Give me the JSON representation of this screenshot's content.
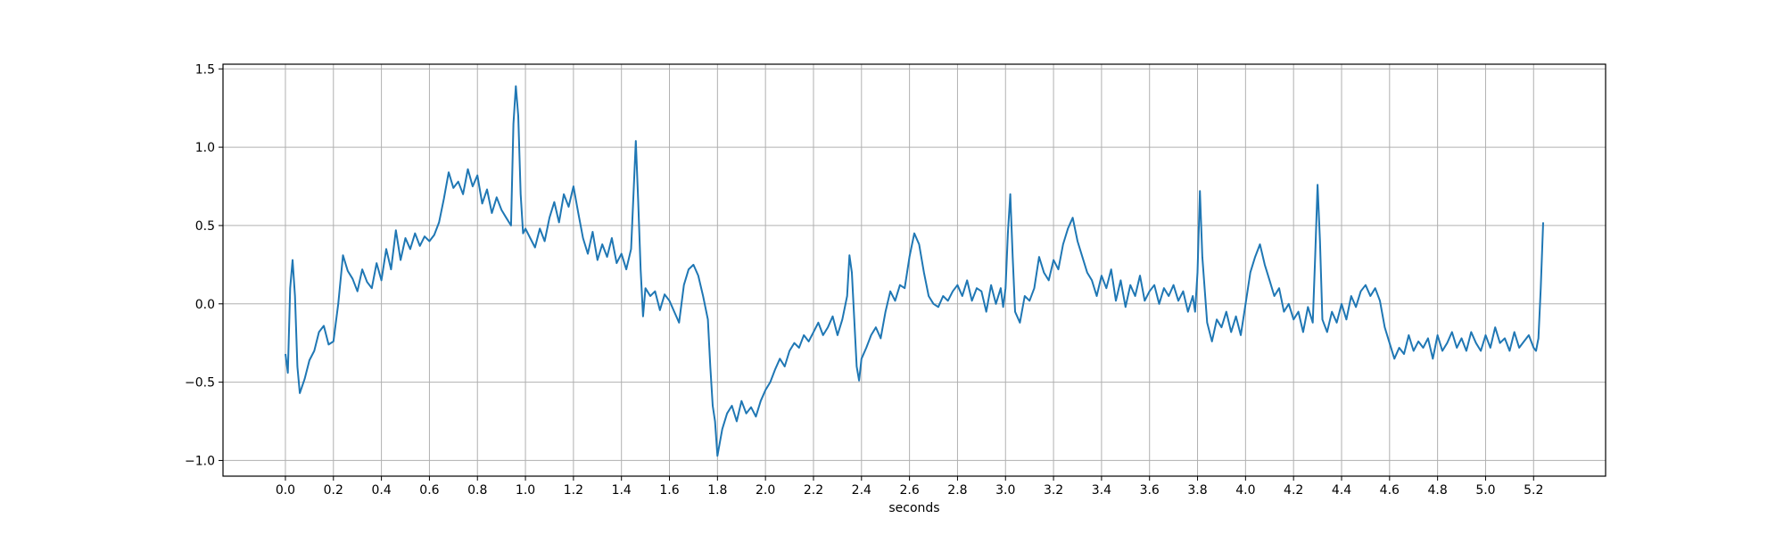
{
  "chart_data": {
    "type": "line",
    "title": "",
    "xlabel": "seconds",
    "ylabel": "",
    "xlim": [
      -0.26,
      5.5
    ],
    "ylim": [
      -1.1,
      1.53
    ],
    "x_ticks": [
      0.0,
      0.2,
      0.4,
      0.6,
      0.8,
      1.0,
      1.2,
      1.4,
      1.6,
      1.8,
      2.0,
      2.2,
      2.4,
      2.6,
      2.8,
      3.0,
      3.2,
      3.4,
      3.6,
      3.8,
      4.0,
      4.2,
      4.4,
      4.6,
      4.8,
      5.0,
      5.2
    ],
    "x_tick_labels": [
      "0.0",
      "0.2",
      "0.4",
      "0.6",
      "0.8",
      "1.0",
      "1.2",
      "1.4",
      "1.6",
      "1.8",
      "2.0",
      "2.2",
      "2.4",
      "2.6",
      "2.8",
      "3.0",
      "3.2",
      "3.4",
      "3.6",
      "3.8",
      "4.0",
      "4.2",
      "4.4",
      "4.6",
      "4.8",
      "5.0",
      "5.2"
    ],
    "y_ticks": [
      1.5,
      1.0,
      0.5,
      0.0,
      -0.5,
      -1.0
    ],
    "y_tick_labels": [
      "1.5",
      "1.0",
      "0.5",
      "0.0",
      "−0.5",
      "−1.0"
    ],
    "grid": true,
    "color": "#1f77b4",
    "series": [
      {
        "x": [
          0.0,
          0.01,
          0.02,
          0.03,
          0.04,
          0.05,
          0.06,
          0.08,
          0.1,
          0.12,
          0.14,
          0.16,
          0.18,
          0.2,
          0.22,
          0.24,
          0.26,
          0.28,
          0.3,
          0.32,
          0.34,
          0.36,
          0.38,
          0.4,
          0.42,
          0.44,
          0.46,
          0.48,
          0.5,
          0.52,
          0.54,
          0.56,
          0.58,
          0.6,
          0.62,
          0.64,
          0.66,
          0.68,
          0.7,
          0.72,
          0.74,
          0.76,
          0.78,
          0.8,
          0.82,
          0.84,
          0.86,
          0.88,
          0.9,
          0.92,
          0.94,
          0.95,
          0.96,
          0.97,
          0.98,
          0.99,
          1.0,
          1.02,
          1.04,
          1.06,
          1.08,
          1.1,
          1.12,
          1.14,
          1.16,
          1.18,
          1.2,
          1.22,
          1.24,
          1.26,
          1.28,
          1.3,
          1.32,
          1.34,
          1.36,
          1.38,
          1.4,
          1.42,
          1.44,
          1.45,
          1.46,
          1.47,
          1.48,
          1.49,
          1.5,
          1.52,
          1.54,
          1.56,
          1.58,
          1.6,
          1.62,
          1.64,
          1.66,
          1.68,
          1.7,
          1.72,
          1.74,
          1.76,
          1.77,
          1.78,
          1.79,
          1.8,
          1.82,
          1.84,
          1.86,
          1.88,
          1.9,
          1.92,
          1.94,
          1.96,
          1.98,
          2.0,
          2.02,
          2.04,
          2.06,
          2.08,
          2.1,
          2.12,
          2.14,
          2.16,
          2.18,
          2.2,
          2.22,
          2.24,
          2.26,
          2.28,
          2.3,
          2.32,
          2.34,
          2.35,
          2.36,
          2.37,
          2.38,
          2.39,
          2.4,
          2.42,
          2.44,
          2.46,
          2.48,
          2.5,
          2.52,
          2.54,
          2.56,
          2.58,
          2.6,
          2.62,
          2.64,
          2.66,
          2.68,
          2.7,
          2.72,
          2.74,
          2.76,
          2.78,
          2.8,
          2.82,
          2.84,
          2.86,
          2.88,
          2.9,
          2.92,
          2.94,
          2.96,
          2.98,
          2.99,
          3.0,
          3.01,
          3.02,
          3.03,
          3.04,
          3.06,
          3.08,
          3.1,
          3.12,
          3.14,
          3.16,
          3.18,
          3.2,
          3.22,
          3.24,
          3.26,
          3.28,
          3.3,
          3.32,
          3.34,
          3.36,
          3.38,
          3.4,
          3.42,
          3.44,
          3.46,
          3.48,
          3.5,
          3.52,
          3.54,
          3.56,
          3.58,
          3.6,
          3.62,
          3.64,
          3.66,
          3.68,
          3.7,
          3.72,
          3.74,
          3.76,
          3.78,
          3.79,
          3.8,
          3.81,
          3.82,
          3.84,
          3.86,
          3.88,
          3.9,
          3.92,
          3.94,
          3.96,
          3.98,
          4.0,
          4.02,
          4.04,
          4.06,
          4.08,
          4.1,
          4.12,
          4.14,
          4.16,
          4.18,
          4.2,
          4.22,
          4.24,
          4.26,
          4.28,
          4.29,
          4.3,
          4.31,
          4.32,
          4.34,
          4.36,
          4.38,
          4.4,
          4.42,
          4.44,
          4.46,
          4.48,
          4.5,
          4.52,
          4.54,
          4.56,
          4.58,
          4.6,
          4.62,
          4.64,
          4.66,
          4.68,
          4.7,
          4.72,
          4.74,
          4.76,
          4.78,
          4.8,
          4.82,
          4.84,
          4.86,
          4.88,
          4.9,
          4.92,
          4.94,
          4.96,
          4.98,
          5.0,
          5.02,
          5.04,
          5.06,
          5.08,
          5.1,
          5.12,
          5.14,
          5.16,
          5.18,
          5.2,
          5.21,
          5.22,
          5.23,
          5.24
        ],
        "y": [
          -0.32,
          -0.44,
          0.1,
          0.28,
          0.05,
          -0.4,
          -0.57,
          -0.48,
          -0.36,
          -0.3,
          -0.18,
          -0.14,
          -0.26,
          -0.24,
          0.0,
          0.31,
          0.21,
          0.16,
          0.08,
          0.22,
          0.14,
          0.1,
          0.26,
          0.15,
          0.35,
          0.22,
          0.47,
          0.28,
          0.42,
          0.35,
          0.45,
          0.37,
          0.43,
          0.4,
          0.44,
          0.52,
          0.67,
          0.84,
          0.74,
          0.78,
          0.7,
          0.86,
          0.75,
          0.82,
          0.64,
          0.73,
          0.58,
          0.68,
          0.6,
          0.55,
          0.5,
          1.15,
          1.39,
          1.2,
          0.7,
          0.45,
          0.48,
          0.42,
          0.36,
          0.48,
          0.4,
          0.55,
          0.65,
          0.52,
          0.7,
          0.62,
          0.75,
          0.58,
          0.42,
          0.32,
          0.46,
          0.28,
          0.38,
          0.3,
          0.42,
          0.26,
          0.32,
          0.22,
          0.35,
          0.7,
          1.04,
          0.65,
          0.22,
          -0.08,
          0.1,
          0.05,
          0.08,
          -0.04,
          0.06,
          0.02,
          -0.05,
          -0.12,
          0.12,
          0.22,
          0.25,
          0.18,
          0.05,
          -0.1,
          -0.4,
          -0.65,
          -0.75,
          -0.97,
          -0.8,
          -0.7,
          -0.65,
          -0.75,
          -0.62,
          -0.7,
          -0.66,
          -0.72,
          -0.62,
          -0.55,
          -0.5,
          -0.42,
          -0.35,
          -0.4,
          -0.3,
          -0.25,
          -0.28,
          -0.2,
          -0.24,
          -0.18,
          -0.12,
          -0.2,
          -0.15,
          -0.08,
          -0.2,
          -0.1,
          0.05,
          0.31,
          0.2,
          -0.1,
          -0.4,
          -0.49,
          -0.35,
          -0.28,
          -0.2,
          -0.15,
          -0.22,
          -0.05,
          0.08,
          0.02,
          0.12,
          0.1,
          0.3,
          0.45,
          0.38,
          0.2,
          0.05,
          0.0,
          -0.02,
          0.05,
          0.02,
          0.08,
          0.12,
          0.05,
          0.15,
          0.02,
          0.1,
          0.08,
          -0.05,
          0.12,
          0.0,
          0.1,
          -0.02,
          0.1,
          0.45,
          0.7,
          0.3,
          -0.05,
          -0.12,
          0.05,
          0.02,
          0.1,
          0.3,
          0.2,
          0.15,
          0.28,
          0.22,
          0.38,
          0.48,
          0.55,
          0.4,
          0.3,
          0.2,
          0.15,
          0.05,
          0.18,
          0.1,
          0.22,
          0.02,
          0.15,
          -0.02,
          0.12,
          0.05,
          0.18,
          0.02,
          0.08,
          0.12,
          0.0,
          0.1,
          0.05,
          0.12,
          0.02,
          0.08,
          -0.05,
          0.05,
          -0.05,
          0.2,
          0.72,
          0.3,
          -0.12,
          -0.24,
          -0.1,
          -0.15,
          -0.05,
          -0.18,
          -0.08,
          -0.2,
          0.0,
          0.2,
          0.3,
          0.38,
          0.25,
          0.15,
          0.05,
          0.1,
          -0.05,
          0.0,
          -0.1,
          -0.05,
          -0.18,
          -0.02,
          -0.12,
          0.3,
          0.76,
          0.4,
          -0.1,
          -0.18,
          -0.05,
          -0.12,
          0.0,
          -0.1,
          0.05,
          -0.02,
          0.08,
          0.12,
          0.05,
          0.1,
          0.02,
          -0.15,
          -0.25,
          -0.35,
          -0.28,
          -0.32,
          -0.2,
          -0.3,
          -0.24,
          -0.28,
          -0.22,
          -0.35,
          -0.2,
          -0.3,
          -0.25,
          -0.18,
          -0.28,
          -0.22,
          -0.3,
          -0.18,
          -0.25,
          -0.3,
          -0.2,
          -0.28,
          -0.15,
          -0.25,
          -0.22,
          -0.3,
          -0.18,
          -0.28,
          -0.24,
          -0.2,
          -0.28,
          -0.3,
          -0.22,
          0.1,
          0.52
        ]
      }
    ]
  }
}
